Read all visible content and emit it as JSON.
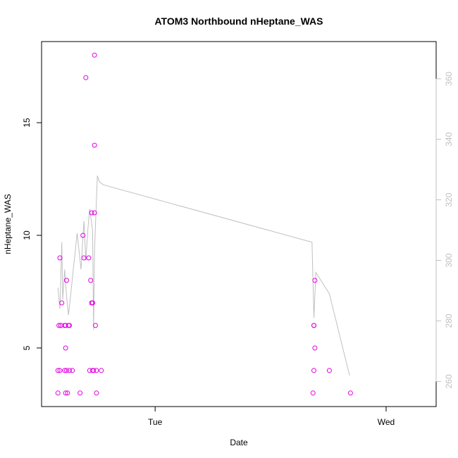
{
  "chart_data": {
    "type": "scatter",
    "title": "ATOM3 Northbound nHeptane_WAS",
    "xlabel": "Date",
    "ylabel": "nHeptane_WAS",
    "x_scale": "time (hours)",
    "xlim": [
      -11.8,
      29.2
    ],
    "ylim": [
      2.4,
      18.6
    ],
    "y2lim": [
      251.7,
      372.3
    ],
    "x_ticks": [
      {
        "value": 0,
        "label": "Tue"
      },
      {
        "value": 24,
        "label": "Wed"
      }
    ],
    "y_ticks": [
      {
        "value": 5,
        "label": "5"
      },
      {
        "value": 10,
        "label": "10"
      },
      {
        "value": 15,
        "label": "15"
      }
    ],
    "y2_ticks": [
      {
        "value": 260,
        "label": "260"
      },
      {
        "value": 280,
        "label": "280"
      },
      {
        "value": 300,
        "label": "300"
      },
      {
        "value": 320,
        "label": "320"
      },
      {
        "value": 340,
        "label": "340"
      },
      {
        "value": 360,
        "label": "360"
      }
    ],
    "grid": false,
    "colors": {
      "points": "#e000e0",
      "line": "#c0c0c0",
      "axes": "#000000",
      "secondary_axis": "#c0c0c0"
    },
    "series": [
      {
        "kind": "points",
        "axis": "left",
        "x": [
          -10.1,
          -10.1,
          -10.0,
          -9.9,
          -9.9,
          -9.8,
          -9.8,
          -9.7,
          -9.4,
          -9.4,
          -9.3,
          -9.3,
          -9.3,
          -9.2,
          -9.2,
          -9.1,
          -9.0,
          -8.9,
          -8.9,
          -8.6,
          -7.8,
          -7.5,
          -7.4,
          -7.2,
          -6.9,
          -6.8,
          -6.7,
          -6.6,
          -6.6,
          -6.5,
          -6.5,
          -6.5,
          -6.4,
          -6.3,
          -6.3,
          -6.3,
          -6.2,
          -6.1,
          -6.1,
          -5.6,
          16.4,
          16.5,
          16.5,
          16.5,
          16.6,
          16.6,
          18.1,
          20.3
        ],
        "y": [
          3,
          4,
          6,
          9,
          4,
          6,
          6,
          7,
          6,
          4,
          5,
          6,
          3,
          8,
          4,
          3,
          6,
          6,
          4,
          4,
          3,
          10,
          9,
          17,
          9,
          4,
          8,
          7,
          11,
          4,
          7,
          7,
          4,
          11,
          18,
          14,
          6,
          4,
          3,
          4,
          3,
          4,
          6,
          6,
          5,
          8,
          4,
          3
        ]
      },
      {
        "kind": "line",
        "axis": "right",
        "x": [
          -10.1,
          -9.9,
          -9.7,
          -9.6,
          -9.4,
          -9.2,
          -9.0,
          -8.8,
          -8.4,
          -8.1,
          -7.7,
          -7.4,
          -7.2,
          -7.0,
          -6.8,
          -6.5,
          -6.4,
          -6.3,
          -6.1,
          -6.0,
          -5.8,
          -5.4,
          16.3,
          16.5,
          16.7,
          18.1,
          20.2
        ],
        "y": [
          291,
          284,
          306,
          287,
          297,
          288,
          282,
          288,
          300,
          309,
          297,
          313,
          300,
          310,
          317,
          310,
          277,
          303,
          320,
          328,
          326,
          325,
          306,
          281,
          296,
          289,
          262
        ]
      }
    ]
  }
}
